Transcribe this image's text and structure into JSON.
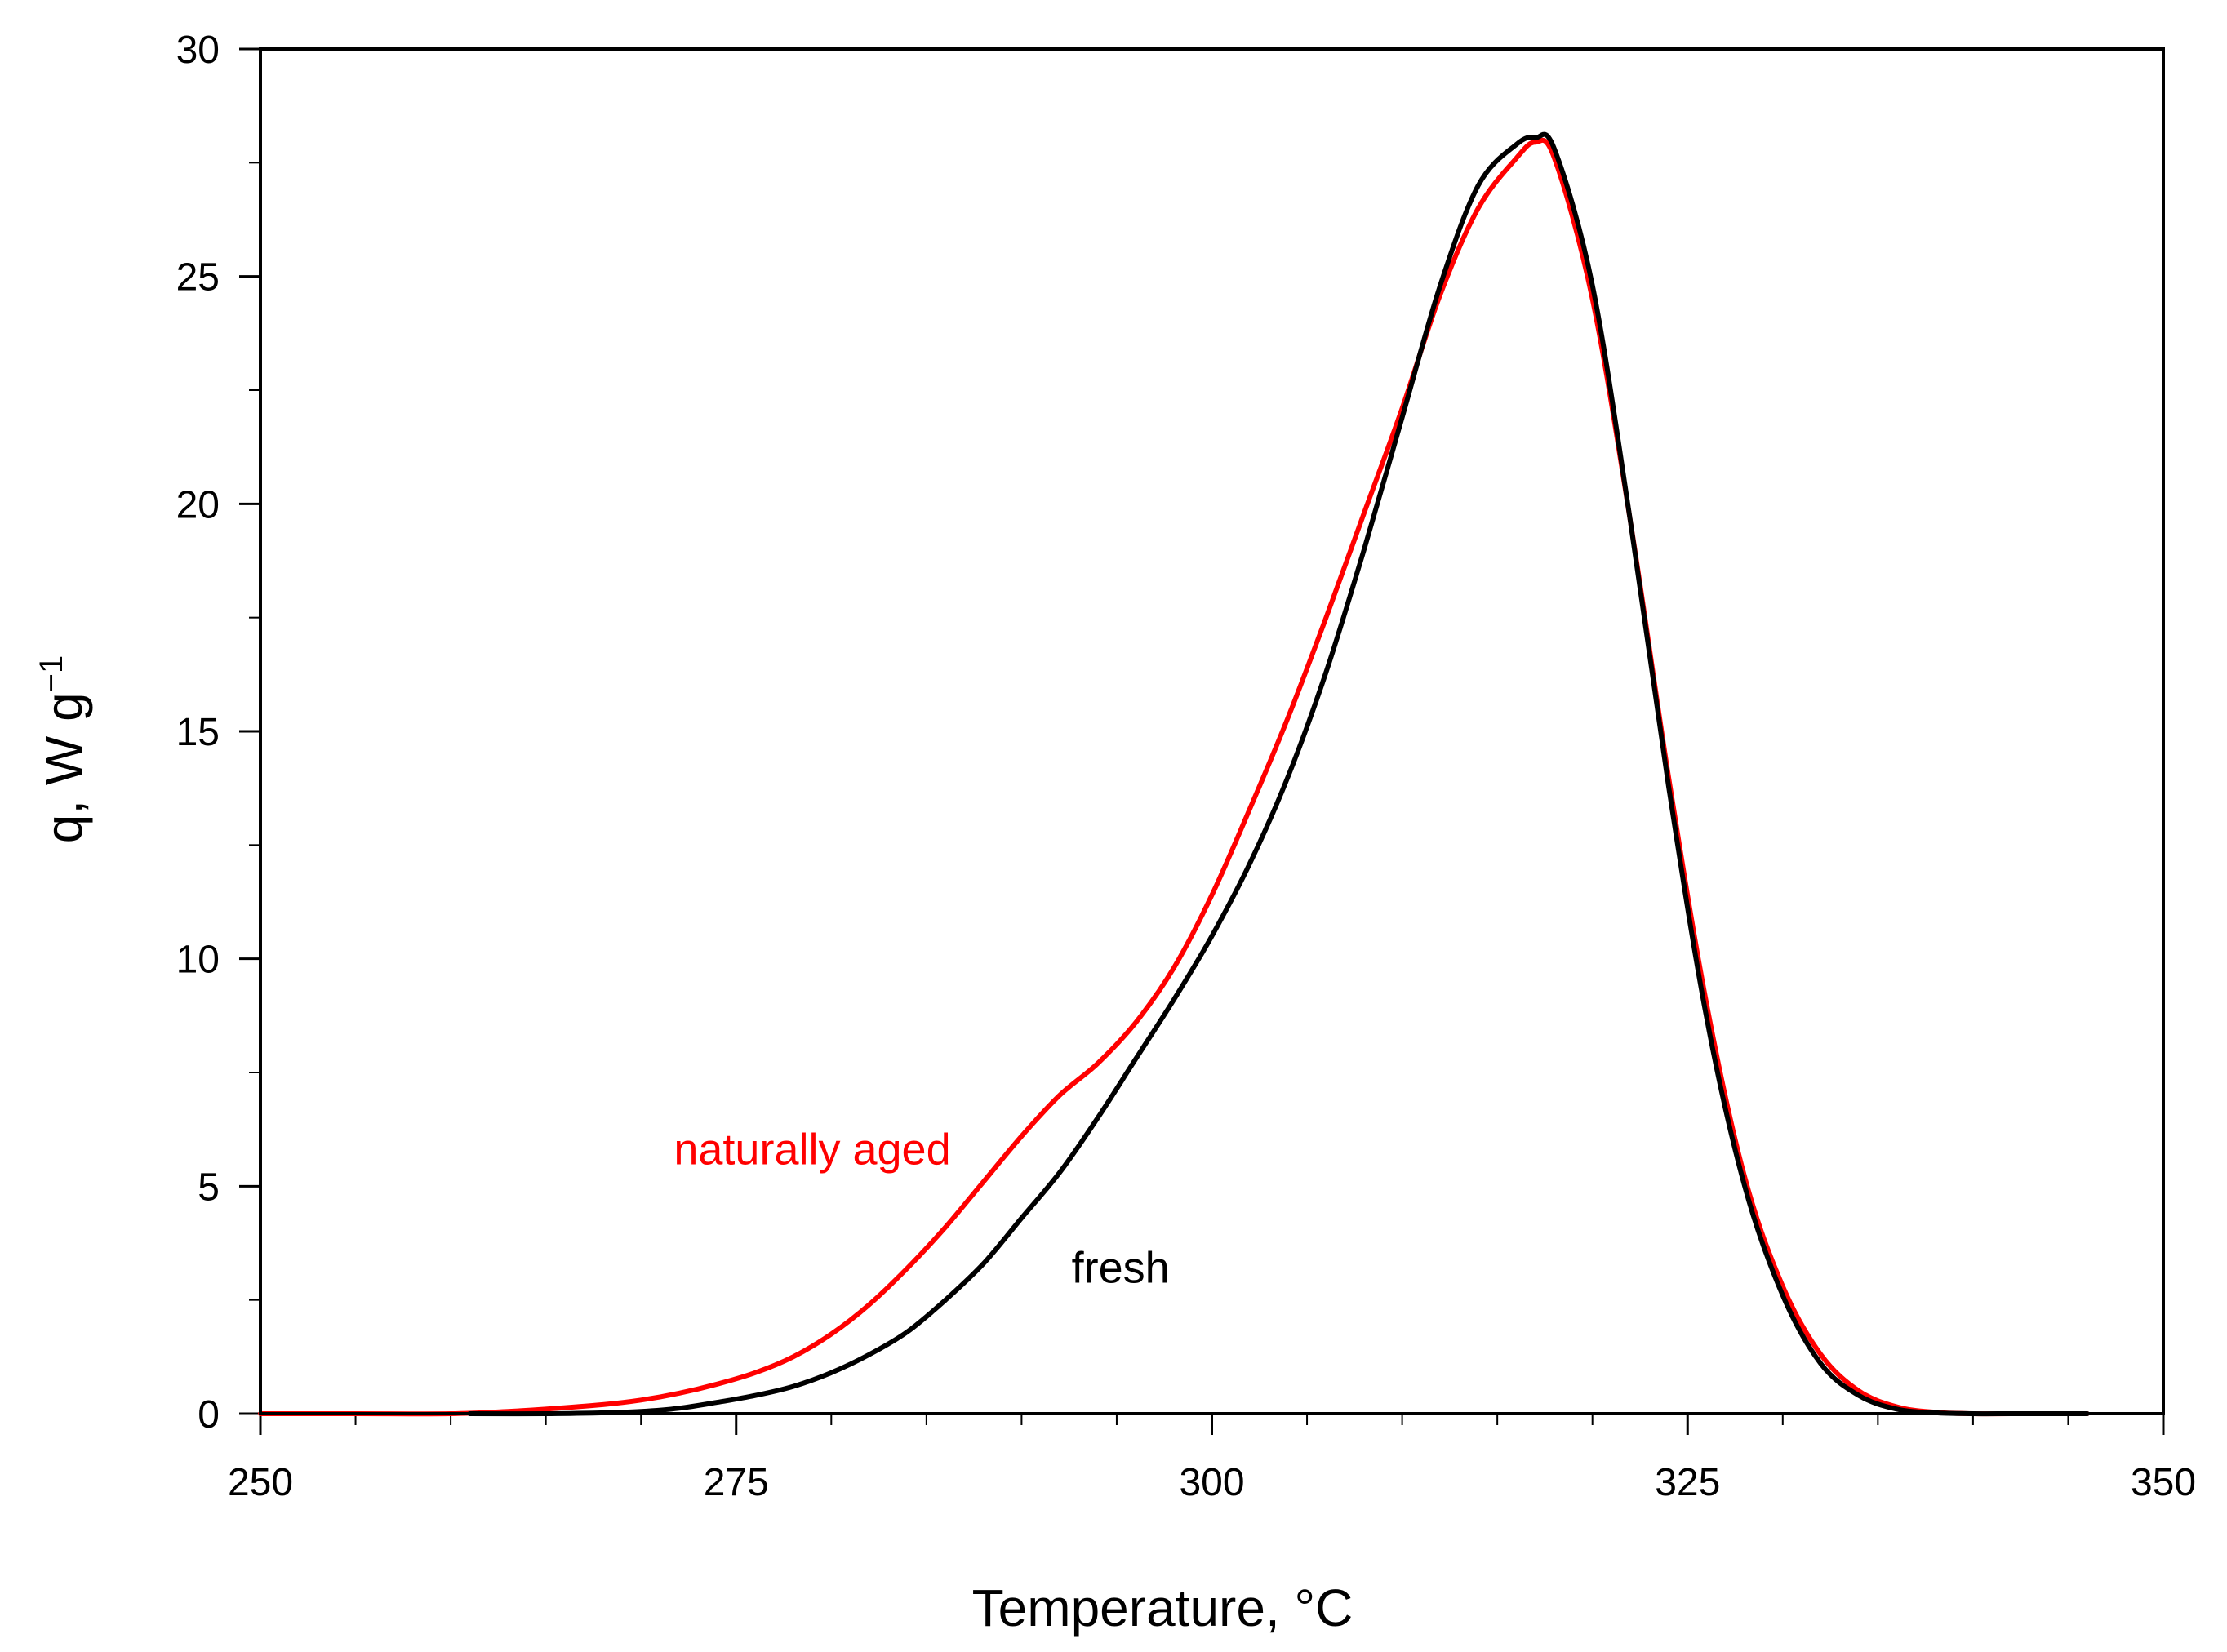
{
  "chart_data": {
    "type": "line",
    "title": "",
    "xlabel": "Temperature,  °C",
    "ylabel_main": "q, W g",
    "ylabel_sup": "−1",
    "xlim": [
      250,
      350
    ],
    "ylim": [
      0,
      30
    ],
    "xticks": [
      250,
      275,
      300,
      325,
      350
    ],
    "yticks": [
      0,
      5,
      10,
      15,
      20,
      25,
      30
    ],
    "x_minor_step": 5,
    "y_minor_step": 2.5,
    "grid": false,
    "series": [
      {
        "name": "naturally aged",
        "color": "#ff0000",
        "x": [
          250,
          255,
          260,
          263,
          265,
          268,
          270,
          272,
          274,
          276,
          278,
          280,
          282,
          284,
          286,
          288,
          290,
          292,
          294,
          296,
          298,
          300,
          302,
          304,
          306,
          308,
          310,
          312,
          314,
          316,
          317,
          318,
          320,
          322,
          324,
          326,
          328,
          330,
          332,
          334,
          336,
          338,
          340,
          342,
          344,
          346
        ],
        "y": [
          0,
          0,
          0,
          0.05,
          0.1,
          0.2,
          0.3,
          0.45,
          0.65,
          0.9,
          1.25,
          1.75,
          2.4,
          3.2,
          4.1,
          5.1,
          6.1,
          7.0,
          7.7,
          8.6,
          9.8,
          11.4,
          13.3,
          15.3,
          17.5,
          19.8,
          22.1,
          24.6,
          26.5,
          27.6,
          27.95,
          27.6,
          24.5,
          19.6,
          14.0,
          9.0,
          5.2,
          2.8,
          1.3,
          0.5,
          0.15,
          0.03,
          0,
          0,
          0,
          0
        ]
      },
      {
        "name": "fresh",
        "color": "#000000",
        "x": [
          261,
          265,
          268,
          270,
          272,
          274,
          276,
          278,
          280,
          282,
          284,
          286,
          288,
          290,
          292,
          294,
          296,
          298,
          300,
          302,
          304,
          306,
          308,
          310,
          312,
          314,
          316,
          317,
          318,
          320,
          322,
          324,
          326,
          328,
          330,
          332,
          334,
          336,
          338,
          340,
          342,
          344,
          346
        ],
        "y": [
          0,
          0,
          0.02,
          0.05,
          0.12,
          0.25,
          0.4,
          0.6,
          0.9,
          1.3,
          1.8,
          2.5,
          3.3,
          4.3,
          5.3,
          6.5,
          7.8,
          9.1,
          10.5,
          12.1,
          14.0,
          16.3,
          19.0,
          21.9,
          24.8,
          27.0,
          27.9,
          28.05,
          27.8,
          24.8,
          19.6,
          13.8,
          8.7,
          5.0,
          2.6,
          1.1,
          0.4,
          0.1,
          0.02,
          0,
          0,
          0,
          0
        ]
      }
    ],
    "annotations": [
      {
        "text": "naturally aged",
        "x": 279,
        "y": 5.8,
        "color": "#ff0000"
      },
      {
        "text": "fresh",
        "x": 295.2,
        "y": 3.2,
        "color": "#000000"
      }
    ]
  }
}
